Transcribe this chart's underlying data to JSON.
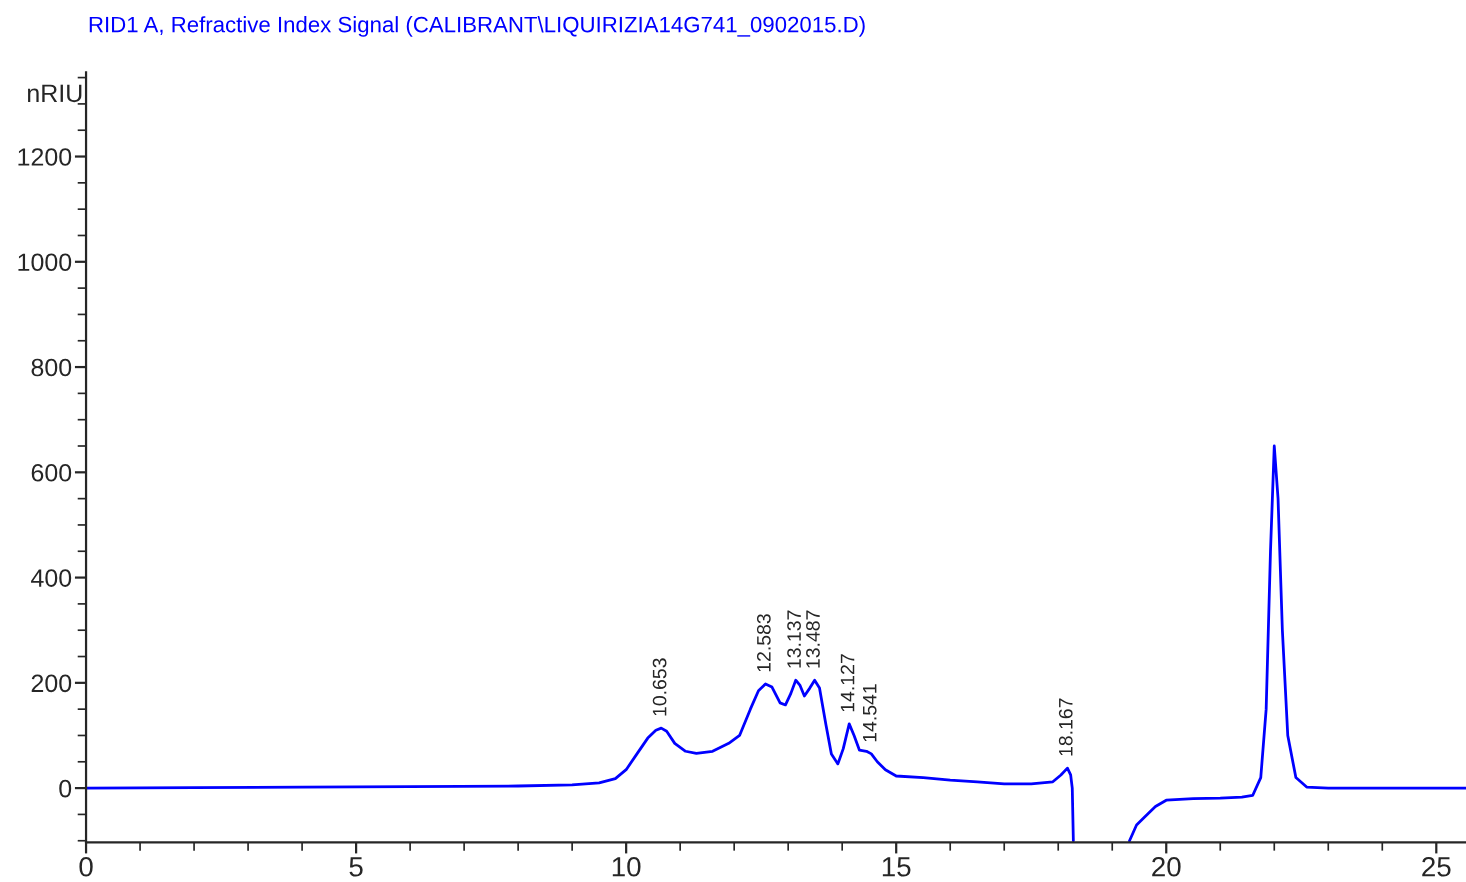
{
  "chart_data": {
    "type": "line",
    "title": "RID1 A, Refractive Index Signal (CALIBRANT\\LIQUIRIZIA14G741_0902015.D)",
    "ylabel": "nRIU",
    "x": [
      0,
      2,
      4,
      6,
      8,
      9,
      9.5,
      9.8,
      10.0,
      10.2,
      10.4,
      10.55,
      10.65,
      10.75,
      10.9,
      11.1,
      11.3,
      11.6,
      11.9,
      12.1,
      12.3,
      12.45,
      12.58,
      12.7,
      12.85,
      12.95,
      13.05,
      13.14,
      13.22,
      13.3,
      13.4,
      13.49,
      13.58,
      13.7,
      13.8,
      13.92,
      14.02,
      14.13,
      14.22,
      14.32,
      14.45,
      14.54,
      14.65,
      14.8,
      15.0,
      15.5,
      16.0,
      16.5,
      17.0,
      17.5,
      17.9,
      18.05,
      18.17,
      18.23,
      18.26,
      18.28,
      18.3,
      19.3,
      19.32,
      19.45,
      19.6,
      19.8,
      20.0,
      20.5,
      21.0,
      21.4,
      21.6,
      21.75,
      21.85,
      21.93,
      22.0,
      22.07,
      22.15,
      22.25,
      22.4,
      22.6,
      23.0,
      24.0,
      25.0,
      25.55
    ],
    "series": [
      {
        "color": "#0000ff",
        "values": [
          0,
          1,
          2,
          3,
          4,
          6,
          10,
          18,
          35,
          65,
          95,
          110,
          114,
          108,
          85,
          70,
          66,
          70,
          85,
          100,
          150,
          185,
          198,
          192,
          162,
          158,
          180,
          205,
          195,
          175,
          190,
          205,
          190,
          120,
          65,
          46,
          75,
          122,
          100,
          72,
          70,
          65,
          50,
          35,
          23,
          20,
          15,
          12,
          8,
          8,
          12,
          25,
          38,
          25,
          0,
          -100,
          null,
          null,
          -100,
          -70,
          -55,
          -35,
          -23,
          -20,
          -19,
          -17,
          -14,
          20,
          150,
          450,
          650,
          550,
          300,
          100,
          20,
          2,
          0,
          0,
          0,
          0
        ]
      }
    ],
    "xlim": [
      0,
      25.55
    ],
    "ylim": [
      -103,
      1360
    ],
    "xticks": [
      0,
      5,
      10,
      15,
      20,
      25
    ],
    "yticks": [
      0,
      200,
      400,
      600,
      800,
      1000,
      1200
    ],
    "grid": false,
    "legend": false,
    "annotations": [
      {
        "text": "10.653",
        "x": 10.65,
        "y": 114
      },
      {
        "text": "12.583",
        "x": 12.58,
        "y": 198
      },
      {
        "text": "13.137",
        "x": 13.14,
        "y": 205
      },
      {
        "text": "13.487",
        "x": 13.49,
        "y": 205
      },
      {
        "text": "14.127",
        "x": 14.13,
        "y": 122
      },
      {
        "text": "14.541",
        "x": 14.54,
        "y": 65
      },
      {
        "text": "18.167",
        "x": 18.17,
        "y": 38
      }
    ]
  }
}
